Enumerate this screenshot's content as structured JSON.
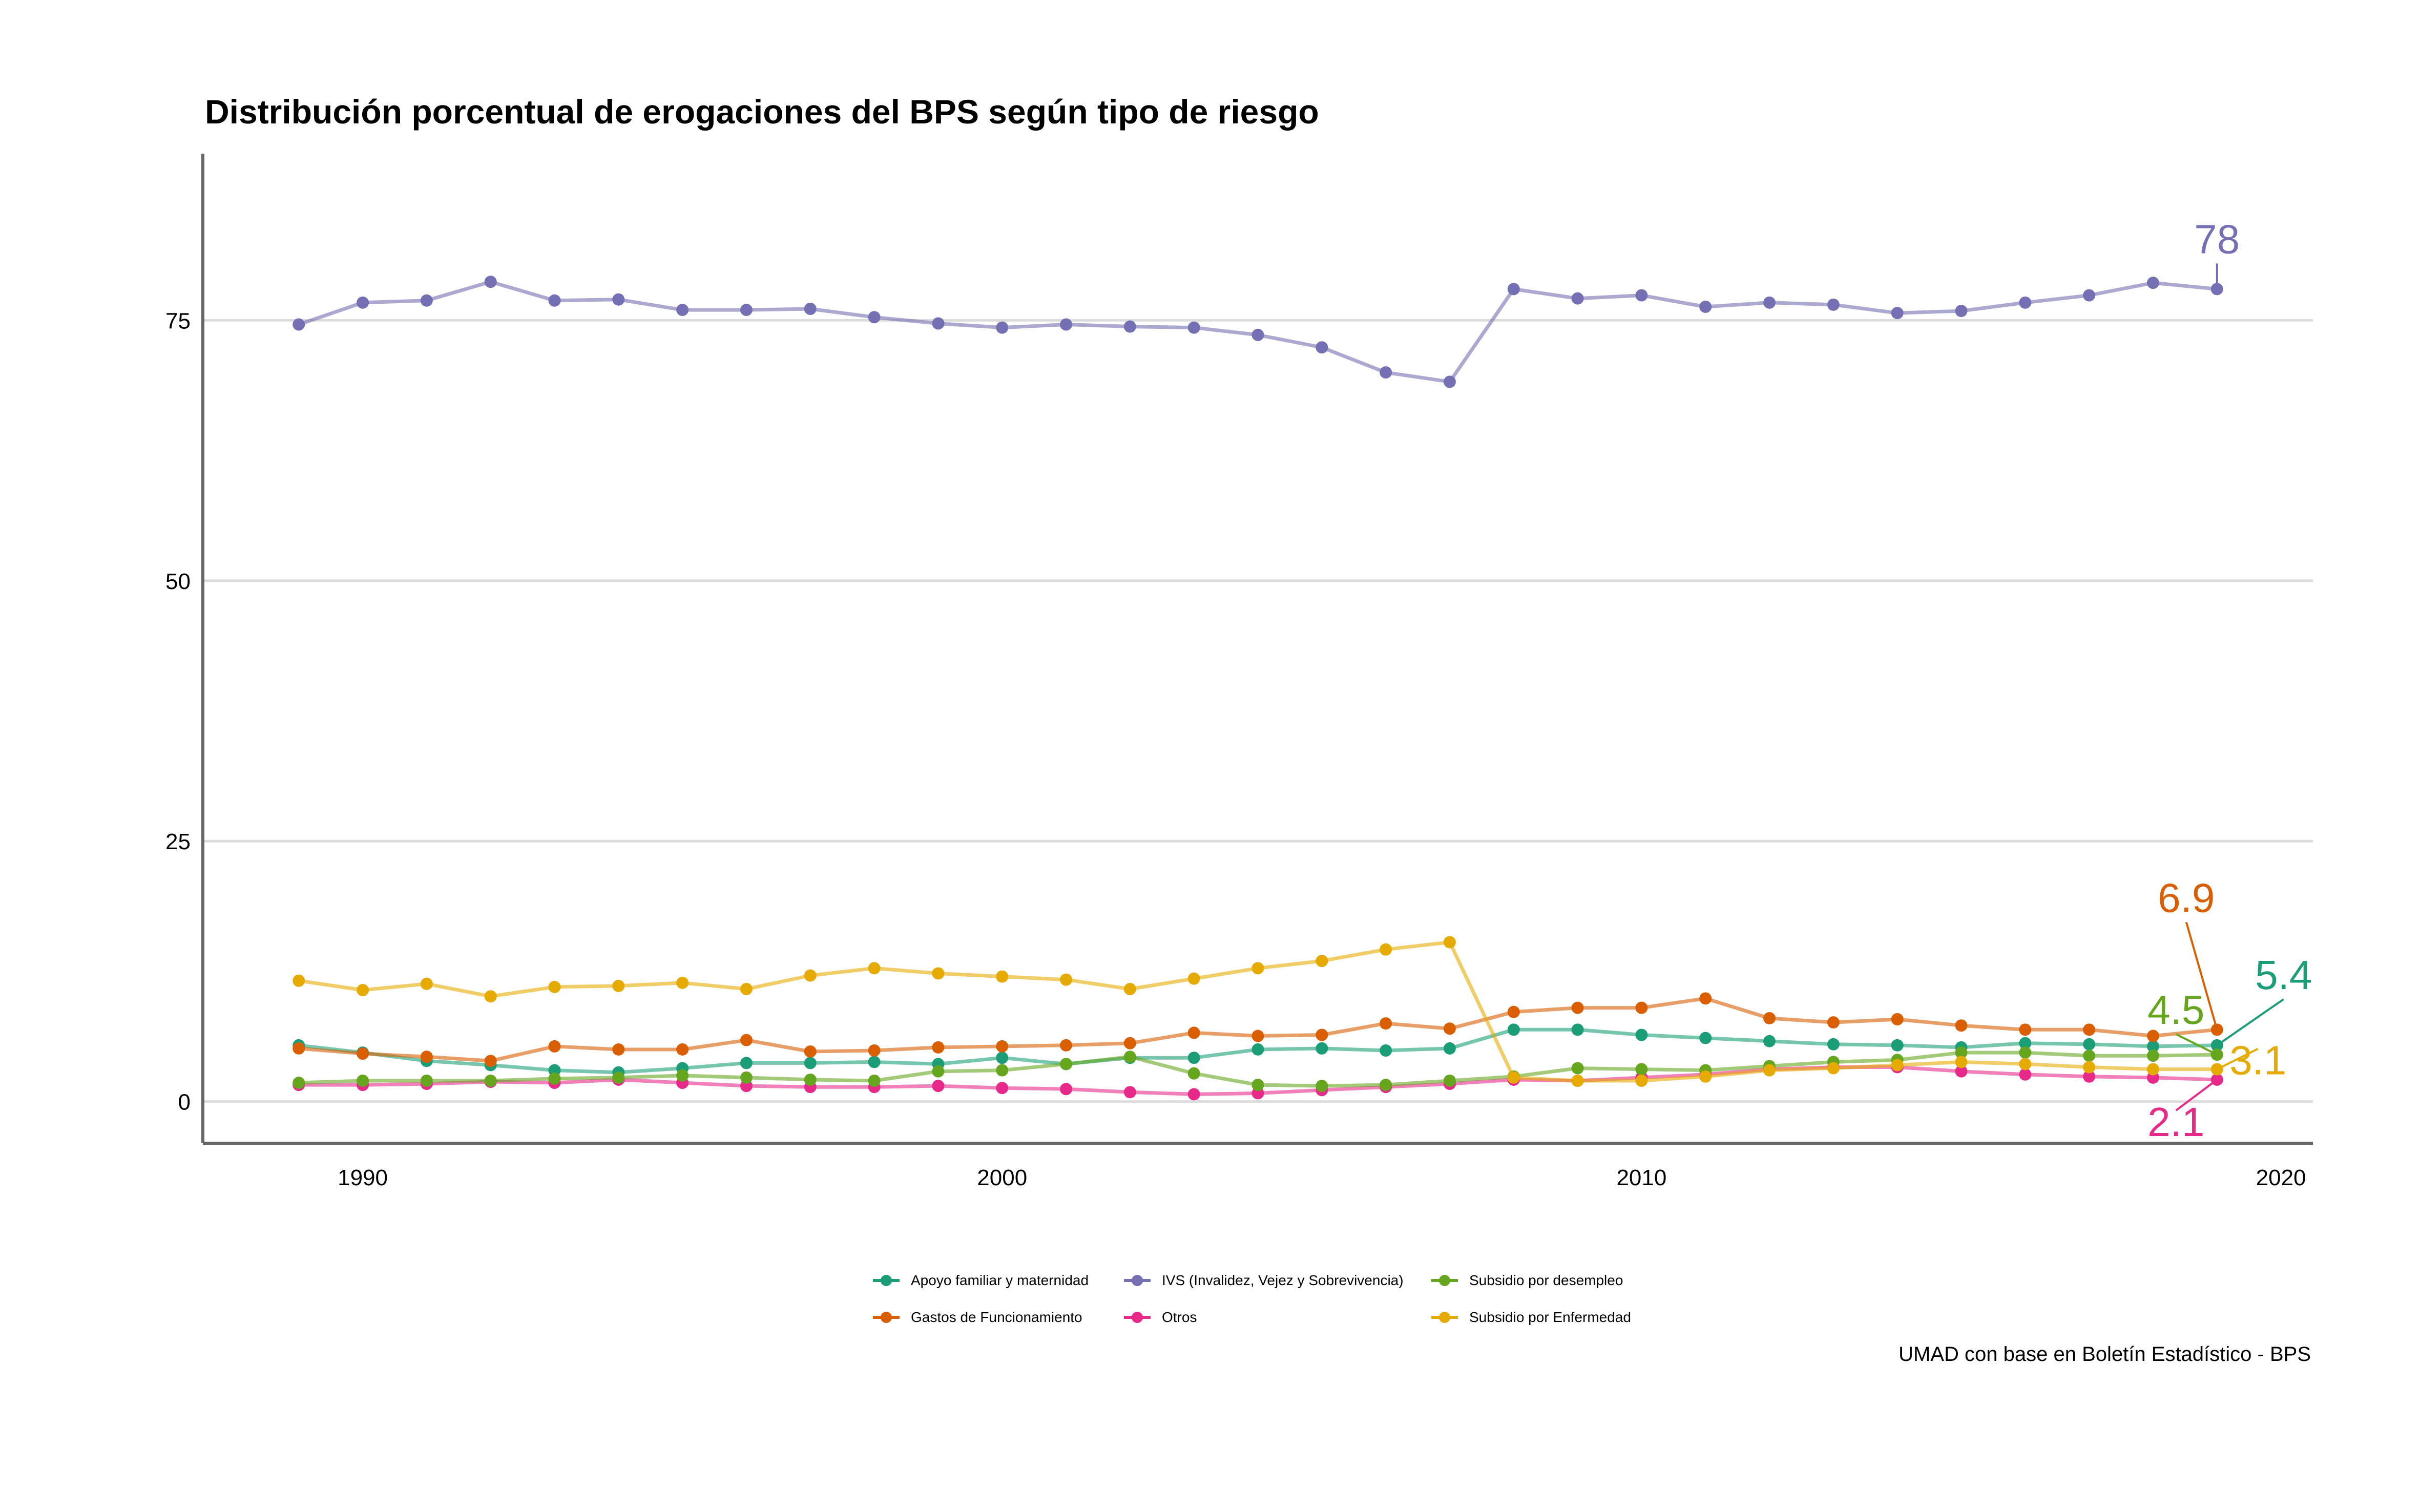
{
  "title": "Distribución porcentual de erogaciones del BPS según tipo de riesgo",
  "caption": "UMAD con base en Boletín Estadístico - BPS",
  "chart_data": {
    "type": "line",
    "xlabel": "",
    "ylabel": "",
    "xlim": [
      1987.5,
      2020.5
    ],
    "ylim": [
      -4,
      91
    ],
    "x_ticks": [
      1990,
      2000,
      2010,
      2020
    ],
    "y_ticks": [
      0,
      25,
      50,
      75
    ],
    "grid": "horizontal",
    "legend_position": "bottom",
    "x": [
      1989,
      1990,
      1991,
      1992,
      1993,
      1994,
      1995,
      1996,
      1997,
      1998,
      1999,
      2000,
      2001,
      2002,
      2003,
      2004,
      2005,
      2006,
      2007,
      2008,
      2009,
      2010,
      2011,
      2012,
      2013,
      2014,
      2015,
      2016,
      2017,
      2018,
      2019
    ],
    "series": [
      {
        "name": "Apoyo familiar y maternidad",
        "color": "#1B9E77",
        "end_label": "5.4",
        "values": [
          5.4,
          4.7,
          3.9,
          3.5,
          3.0,
          2.8,
          3.2,
          3.7,
          3.7,
          3.8,
          3.6,
          4.2,
          3.6,
          4.2,
          4.2,
          5.0,
          5.1,
          4.9,
          5.1,
          6.9,
          6.9,
          6.4,
          6.1,
          5.8,
          5.5,
          5.4,
          5.2,
          5.6,
          5.5,
          5.3,
          5.4
        ]
      },
      {
        "name": "Gastos de Funcionamiento",
        "color": "#D95F02",
        "end_label": "6.9",
        "values": [
          5.1,
          4.6,
          4.3,
          3.9,
          5.3,
          5.0,
          5.0,
          5.9,
          4.8,
          4.9,
          5.2,
          5.3,
          5.4,
          5.6,
          6.6,
          6.3,
          6.4,
          7.5,
          7.0,
          8.6,
          9.0,
          9.0,
          9.9,
          8.0,
          7.6,
          7.9,
          7.3,
          6.9,
          6.9,
          6.3,
          6.9
        ]
      },
      {
        "name": "IVS (Invalidez, Vejez y Sobrevivencia)",
        "color": "#7570B3",
        "end_label": "78",
        "values": [
          74.6,
          76.7,
          76.9,
          78.7,
          76.9,
          77.0,
          76.0,
          76.0,
          76.1,
          75.3,
          74.7,
          74.3,
          74.6,
          74.4,
          74.3,
          73.6,
          72.4,
          70.0,
          69.1,
          78.0,
          77.1,
          77.4,
          76.3,
          76.7,
          76.5,
          75.7,
          75.9,
          76.7,
          77.4,
          78.6,
          78.0
        ]
      },
      {
        "name": "Otros",
        "color": "#E7298A",
        "end_label": "2.1",
        "values": [
          1.6,
          1.6,
          1.7,
          1.9,
          1.8,
          2.1,
          1.8,
          1.5,
          1.4,
          1.4,
          1.5,
          1.3,
          1.2,
          0.9,
          0.7,
          0.8,
          1.1,
          1.4,
          1.7,
          2.1,
          2.0,
          2.3,
          2.6,
          3.1,
          3.3,
          3.3,
          2.9,
          2.6,
          2.4,
          2.3,
          2.1
        ]
      },
      {
        "name": "Subsidio por desempleo",
        "color": "#66A61E",
        "end_label": "4.5",
        "values": [
          1.8,
          2.0,
          2.0,
          2.0,
          2.2,
          2.3,
          2.5,
          2.3,
          2.1,
          2.0,
          2.9,
          3.0,
          3.6,
          4.3,
          2.7,
          1.6,
          1.5,
          1.6,
          2.0,
          2.4,
          3.2,
          3.1,
          3.0,
          3.4,
          3.8,
          4.0,
          4.7,
          4.7,
          4.4,
          4.4,
          4.5
        ]
      },
      {
        "name": "Subsidio por Enfermedad",
        "color": "#E6AB02",
        "end_label": "3.1",
        "values": [
          11.6,
          10.7,
          11.3,
          10.1,
          11.0,
          11.1,
          11.4,
          10.8,
          12.1,
          12.8,
          12.3,
          12.0,
          11.7,
          10.8,
          11.8,
          12.8,
          13.5,
          14.6,
          15.3,
          2.3,
          2.0,
          2.0,
          2.4,
          3.0,
          3.2,
          3.5,
          3.8,
          3.6,
          3.3,
          3.1,
          3.1
        ]
      }
    ]
  }
}
